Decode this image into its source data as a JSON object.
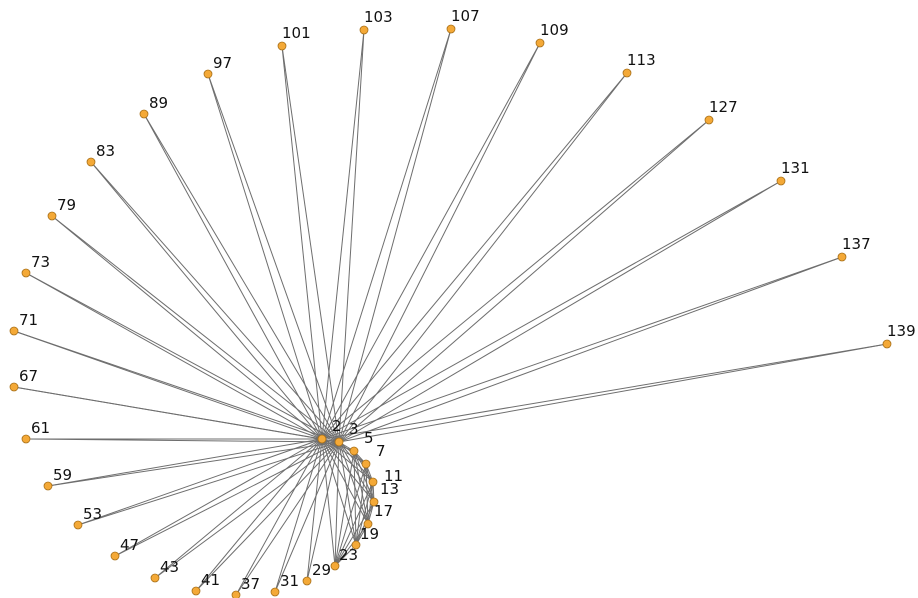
{
  "graph": {
    "colors": {
      "node": "#f4a937",
      "node_outline": "#a8701a",
      "edge": "#6e6e6e"
    },
    "nodes": [
      {
        "id": "2",
        "label": "2"
      },
      {
        "id": "3",
        "label": "3"
      },
      {
        "id": "5",
        "label": "5"
      },
      {
        "id": "7",
        "label": "7"
      },
      {
        "id": "11",
        "label": "11"
      },
      {
        "id": "13",
        "label": "13"
      },
      {
        "id": "17",
        "label": "17"
      },
      {
        "id": "19",
        "label": "19"
      },
      {
        "id": "23",
        "label": "23"
      },
      {
        "id": "29",
        "label": "29"
      },
      {
        "id": "31",
        "label": "31"
      },
      {
        "id": "37",
        "label": "37"
      },
      {
        "id": "41",
        "label": "41"
      },
      {
        "id": "43",
        "label": "43"
      },
      {
        "id": "47",
        "label": "47"
      },
      {
        "id": "53",
        "label": "53"
      },
      {
        "id": "59",
        "label": "59"
      },
      {
        "id": "61",
        "label": "61"
      },
      {
        "id": "67",
        "label": "67"
      },
      {
        "id": "71",
        "label": "71"
      },
      {
        "id": "73",
        "label": "73"
      },
      {
        "id": "79",
        "label": "79"
      },
      {
        "id": "83",
        "label": "83"
      },
      {
        "id": "89",
        "label": "89"
      },
      {
        "id": "97",
        "label": "97"
      },
      {
        "id": "101",
        "label": "101"
      },
      {
        "id": "103",
        "label": "103"
      },
      {
        "id": "107",
        "label": "107"
      },
      {
        "id": "109",
        "label": "109"
      },
      {
        "id": "113",
        "label": "113"
      },
      {
        "id": "127",
        "label": "127"
      },
      {
        "id": "131",
        "label": "131"
      },
      {
        "id": "137",
        "label": "137"
      },
      {
        "id": "139",
        "label": "139"
      }
    ],
    "hubs": [
      "2",
      "3"
    ],
    "inner_ring": [
      "5",
      "7",
      "11",
      "13",
      "17",
      "19",
      "23"
    ]
  }
}
